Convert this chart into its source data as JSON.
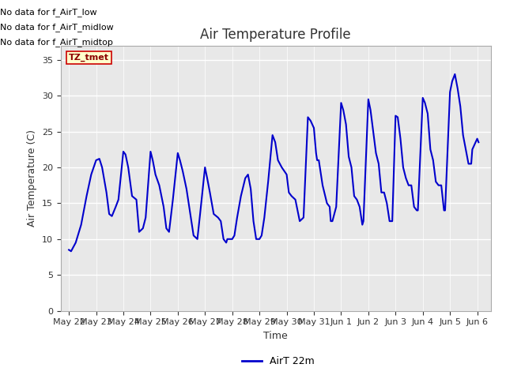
{
  "title": "Air Temperature Profile",
  "xlabel": "Time",
  "ylabel": "Air Temperature (C)",
  "ylim": [
    0,
    37
  ],
  "yticks": [
    0,
    5,
    10,
    15,
    20,
    25,
    30,
    35
  ],
  "fig_bg_color": "#ffffff",
  "plot_bg_color": "#e8e8e8",
  "line_color": "#0000cc",
  "line_width": 1.5,
  "legend_label": "AirT 22m",
  "no_data_texts": [
    "No data for f_AirT_low",
    "No data for f_AirT_midlow",
    "No data for f_AirT_midtop"
  ],
  "tz_label": "TZ_tmet",
  "x_dates": [
    "May 22",
    "May 23",
    "May 24",
    "May 25",
    "May 26",
    "May 27",
    "May 28",
    "May 29",
    "May 30",
    "May 31",
    "Jun 1",
    "Jun 2",
    "Jun 3",
    "Jun 4",
    "Jun 5",
    "Jun 6"
  ],
  "time_series": [
    [
      0.0,
      8.5
    ],
    [
      0.08,
      8.3
    ],
    [
      0.25,
      9.5
    ],
    [
      0.45,
      12.0
    ],
    [
      0.65,
      16.0
    ],
    [
      0.82,
      19.0
    ],
    [
      1.0,
      21.0
    ],
    [
      1.12,
      21.2
    ],
    [
      1.22,
      20.0
    ],
    [
      1.38,
      16.5
    ],
    [
      1.48,
      13.5
    ],
    [
      1.58,
      13.2
    ],
    [
      1.72,
      14.5
    ],
    [
      1.82,
      15.5
    ],
    [
      2.0,
      22.2
    ],
    [
      2.08,
      21.8
    ],
    [
      2.18,
      20.0
    ],
    [
      2.32,
      16.0
    ],
    [
      2.48,
      15.5
    ],
    [
      2.58,
      11.0
    ],
    [
      2.72,
      11.5
    ],
    [
      2.82,
      13.0
    ],
    [
      3.0,
      22.2
    ],
    [
      3.08,
      21.0
    ],
    [
      3.18,
      19.0
    ],
    [
      3.32,
      17.5
    ],
    [
      3.48,
      14.5
    ],
    [
      3.58,
      11.5
    ],
    [
      3.68,
      11.0
    ],
    [
      3.82,
      15.5
    ],
    [
      4.0,
      22.0
    ],
    [
      4.08,
      21.0
    ],
    [
      4.18,
      19.5
    ],
    [
      4.32,
      17.0
    ],
    [
      4.48,
      13.0
    ],
    [
      4.58,
      10.5
    ],
    [
      4.72,
      10.0
    ],
    [
      4.82,
      13.5
    ],
    [
      5.0,
      20.0
    ],
    [
      5.08,
      18.5
    ],
    [
      5.18,
      16.5
    ],
    [
      5.32,
      13.5
    ],
    [
      5.48,
      13.0
    ],
    [
      5.58,
      12.5
    ],
    [
      5.68,
      10.0
    ],
    [
      5.78,
      9.5
    ],
    [
      5.82,
      10.0
    ],
    [
      6.0,
      10.0
    ],
    [
      6.08,
      10.5
    ],
    [
      6.18,
      13.0
    ],
    [
      6.32,
      16.0
    ],
    [
      6.48,
      18.5
    ],
    [
      6.58,
      19.0
    ],
    [
      6.68,
      17.0
    ],
    [
      6.78,
      12.5
    ],
    [
      6.88,
      10.0
    ],
    [
      7.0,
      10.0
    ],
    [
      7.08,
      10.5
    ],
    [
      7.18,
      13.0
    ],
    [
      7.32,
      18.0
    ],
    [
      7.48,
      24.5
    ],
    [
      7.58,
      23.5
    ],
    [
      7.68,
      21.0
    ],
    [
      7.82,
      20.0
    ],
    [
      8.0,
      19.0
    ],
    [
      8.08,
      16.5
    ],
    [
      8.18,
      16.0
    ],
    [
      8.32,
      15.5
    ],
    [
      8.48,
      12.5
    ],
    [
      8.62,
      13.0
    ],
    [
      8.78,
      27.0
    ],
    [
      8.88,
      26.5
    ],
    [
      9.0,
      25.5
    ],
    [
      9.08,
      22.0
    ],
    [
      9.12,
      21.0
    ],
    [
      9.18,
      21.0
    ],
    [
      9.32,
      17.5
    ],
    [
      9.48,
      15.0
    ],
    [
      9.58,
      14.5
    ],
    [
      9.62,
      12.5
    ],
    [
      9.68,
      12.5
    ],
    [
      9.82,
      14.5
    ],
    [
      10.0,
      29.0
    ],
    [
      10.08,
      28.0
    ],
    [
      10.18,
      26.0
    ],
    [
      10.28,
      21.5
    ],
    [
      10.38,
      20.0
    ],
    [
      10.48,
      16.0
    ],
    [
      10.58,
      15.5
    ],
    [
      10.68,
      14.5
    ],
    [
      10.78,
      12.0
    ],
    [
      10.82,
      12.5
    ],
    [
      11.0,
      29.5
    ],
    [
      11.08,
      28.0
    ],
    [
      11.18,
      25.0
    ],
    [
      11.28,
      22.0
    ],
    [
      11.38,
      20.5
    ],
    [
      11.48,
      16.5
    ],
    [
      11.58,
      16.5
    ],
    [
      11.68,
      15.0
    ],
    [
      11.78,
      12.5
    ],
    [
      11.88,
      12.5
    ],
    [
      12.0,
      27.2
    ],
    [
      12.08,
      27.0
    ],
    [
      12.18,
      24.0
    ],
    [
      12.28,
      20.0
    ],
    [
      12.38,
      18.5
    ],
    [
      12.48,
      17.5
    ],
    [
      12.58,
      17.5
    ],
    [
      12.68,
      14.5
    ],
    [
      12.78,
      14.0
    ],
    [
      12.82,
      14.0
    ],
    [
      13.0,
      29.7
    ],
    [
      13.08,
      29.0
    ],
    [
      13.18,
      27.5
    ],
    [
      13.28,
      22.5
    ],
    [
      13.38,
      21.0
    ],
    [
      13.48,
      18.0
    ],
    [
      13.58,
      17.5
    ],
    [
      13.68,
      17.5
    ],
    [
      13.78,
      14.0
    ],
    [
      13.82,
      14.0
    ],
    [
      14.0,
      30.5
    ],
    [
      14.08,
      32.0
    ],
    [
      14.18,
      33.0
    ],
    [
      14.28,
      31.0
    ],
    [
      14.38,
      28.5
    ],
    [
      14.48,
      24.5
    ],
    [
      14.58,
      22.5
    ],
    [
      14.68,
      20.5
    ],
    [
      14.78,
      20.5
    ],
    [
      14.82,
      22.5
    ],
    [
      15.0,
      24.0
    ],
    [
      15.05,
      23.5
    ]
  ]
}
